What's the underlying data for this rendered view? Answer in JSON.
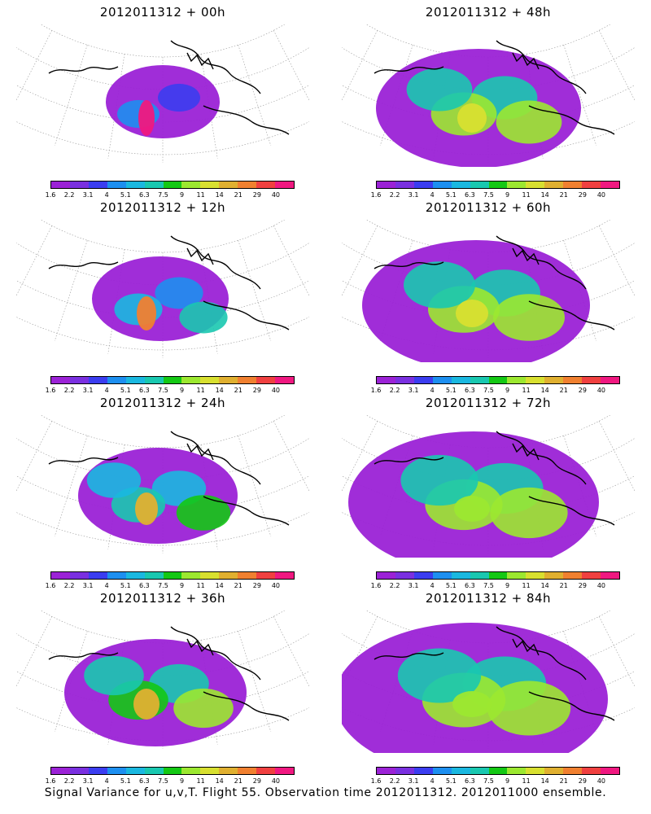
{
  "palette": [
    "#9b22d6",
    "#7a30e0",
    "#3b3df0",
    "#1d8ff0",
    "#1ab8e0",
    "#19c8b0",
    "#14c814",
    "#9ce830",
    "#d8e030",
    "#e0b030",
    "#f08030",
    "#f04040",
    "#f01880"
  ],
  "colorbar_ticks": [
    "1.6",
    "2.2",
    "3.1",
    "4",
    "5.1",
    "6.3",
    "7.5",
    "9",
    "11",
    "14",
    "21",
    "29",
    "40"
  ],
  "footer": "Signal Variance for u,v,T. Flight 55. Observation time 2012011312. 2012011000 ensemble.",
  "panels": [
    {
      "title": "2012011312 + 00h",
      "level": 0
    },
    {
      "title": "2012011312 + 48h",
      "level": 4
    },
    {
      "title": "2012011312 + 12h",
      "level": 1
    },
    {
      "title": "2012011312 + 60h",
      "level": 5
    },
    {
      "title": "2012011312 + 24h",
      "level": 2
    },
    {
      "title": "2012011312 + 72h",
      "level": 6
    },
    {
      "title": "2012011312 + 36h",
      "level": 3
    },
    {
      "title": "2012011312 + 84h",
      "level": 7
    }
  ]
}
